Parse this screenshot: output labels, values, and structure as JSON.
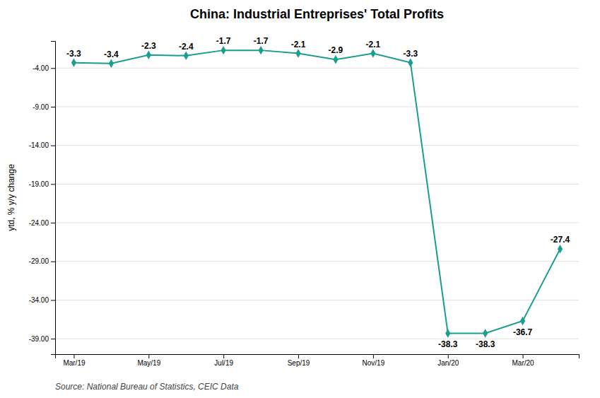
{
  "chart_data": {
    "type": "line",
    "title": "China: Industrial Entreprises' Total Profits",
    "ylabel": "ytd, % y/y change",
    "source": "Source: National Bureau of Statistics, CEIC Data",
    "categories": [
      "Mar/19",
      null,
      "May/19",
      null,
      "Jul/19",
      null,
      "Sep/19",
      null,
      "Nov/19",
      null,
      "Jan/20",
      null,
      "Mar/20",
      null
    ],
    "values": [
      -3.3,
      -3.4,
      -2.3,
      -2.4,
      -1.7,
      -1.7,
      -2.1,
      -2.9,
      -2.1,
      -3.3,
      -38.3,
      -38.3,
      -36.7,
      -27.4
    ],
    "color": "#1a9e8f",
    "marker": "diamond",
    "data_labels": true,
    "ylim": [
      -41,
      -0.5
    ],
    "yticks": [
      {
        "value": -4.0,
        "label": "-4.00"
      },
      {
        "value": -9.0,
        "label": "-9.00"
      },
      {
        "value": -14.0,
        "label": "-14.00"
      },
      {
        "value": -19.0,
        "label": "-19.00"
      },
      {
        "value": -24.0,
        "label": "-24.00"
      },
      {
        "value": -29.0,
        "label": "-29.00"
      },
      {
        "value": -34.0,
        "label": "-34.00"
      },
      {
        "value": -39.0,
        "label": "-39.00"
      }
    ],
    "grid": true
  }
}
